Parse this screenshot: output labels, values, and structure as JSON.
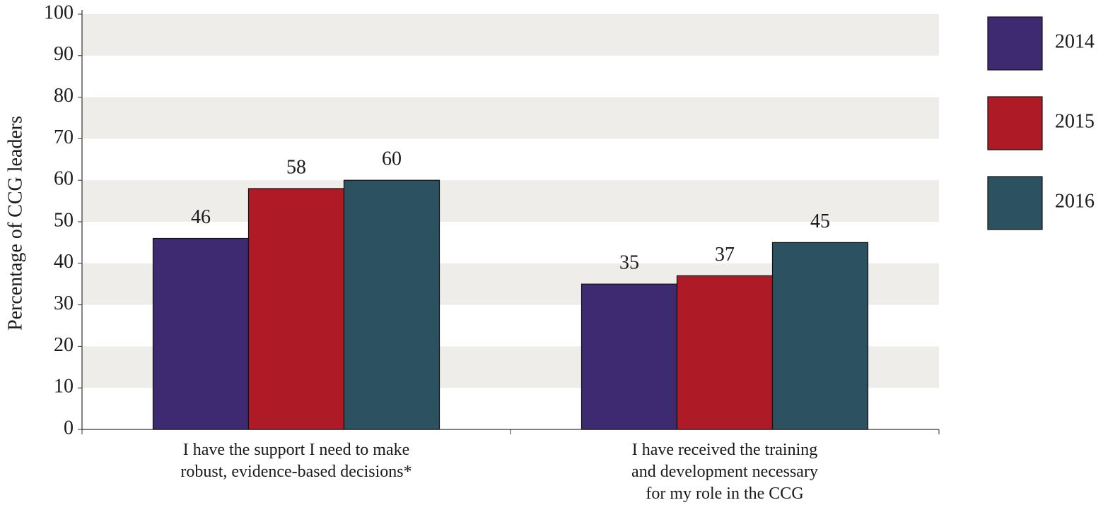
{
  "chart_data": {
    "type": "bar",
    "y_label": "Percentage of CCG leaders",
    "categories": [
      "I have the support I need to make\nrobust, evidence-based decisions*",
      "I have received the training\nand development necessary\nfor my role in the CCG"
    ],
    "series": [
      {
        "name": "2014",
        "color": "#3d2a70",
        "values": [
          46,
          35
        ]
      },
      {
        "name": "2015",
        "color": "#ae1a25",
        "values": [
          58,
          37
        ]
      },
      {
        "name": "2016",
        "color": "#2c5160",
        "values": [
          60,
          45
        ]
      }
    ],
    "ylim": [
      0,
      100
    ],
    "yticks": [
      0,
      10,
      20,
      30,
      40,
      50,
      60,
      70,
      80,
      90,
      100
    ],
    "grid_bands": true,
    "band_color": "#efede9",
    "legend": "right"
  }
}
